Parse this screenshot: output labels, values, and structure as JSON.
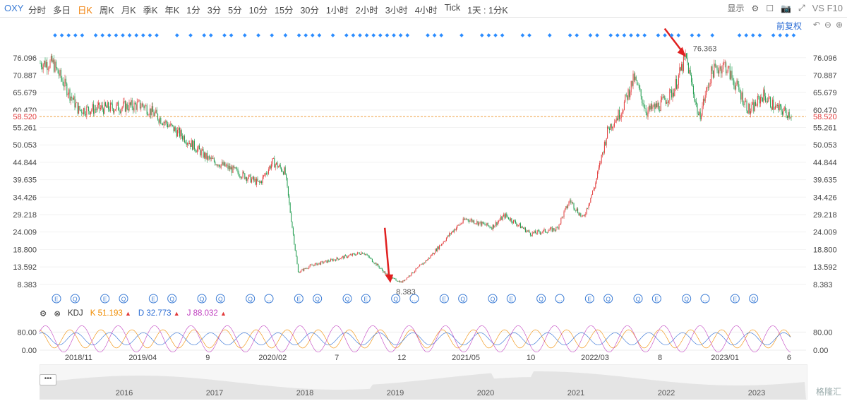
{
  "toolbar": {
    "symbol": "OXY",
    "periods": [
      "分时",
      "多日",
      "日K",
      "周K",
      "月K",
      "季K",
      "年K",
      "1分",
      "3分",
      "5分",
      "10分",
      "15分",
      "30分",
      "1小时",
      "2小时",
      "3小时",
      "4小时",
      "Tick",
      "1天 : 1分K"
    ],
    "active_period": "日K",
    "display_label": "显示",
    "vs_label": "VS F10",
    "adjust_label": "前复权"
  },
  "colors": {
    "up": "#e23a3a",
    "down": "#1a9a4a",
    "event_marker": "#2b8cff",
    "last_price_line": "#f0a040",
    "k_line": "#f08c00",
    "d_line": "#2b6cd4",
    "j_line": "#c040c0"
  },
  "chart_data": [
    {
      "type": "candlestick",
      "title": "",
      "ylim": [
        5.8,
        79.0
      ],
      "y_ticks": [
        "76.096",
        "70.887",
        "65.679",
        "60.470",
        "55.261",
        "50.053",
        "44.844",
        "39.635",
        "34.426",
        "29.218",
        "24.009",
        "18.800",
        "13.592",
        "8.383"
      ],
      "last_price": "58.520",
      "x_labels": [
        "2018/11",
        "2019/04",
        "9",
        "2020/02",
        "7",
        "12",
        "2021/05",
        "10",
        "2022/03",
        "8",
        "2023/01",
        "6"
      ],
      "x": [
        "2018-09",
        "2018-11",
        "2019-01",
        "2019-04",
        "2019-07",
        "2019-09",
        "2019-11",
        "2020-01",
        "2020-02",
        "2020-03",
        "2020-04",
        "2020-05",
        "2020-07",
        "2020-09",
        "2020-10",
        "2020-11",
        "2020-12",
        "2021-02",
        "2021-04",
        "2021-05",
        "2021-07",
        "2021-08",
        "2021-10",
        "2021-12",
        "2022-01",
        "2022-02",
        "2022-03",
        "2022-04",
        "2022-05",
        "2022-06",
        "2022-07",
        "2022-08",
        "2022-09",
        "2022-10",
        "2022-11",
        "2022-12",
        "2023-01",
        "2023-03",
        "2023-04",
        "2023-05",
        "2023-06",
        "2023-07"
      ],
      "close": [
        74.5,
        60.5,
        61.0,
        62.0,
        53.0,
        46.0,
        42.5,
        38.5,
        45.0,
        42.0,
        12.0,
        14.0,
        16.0,
        18.0,
        14.5,
        10.5,
        9.0,
        16.0,
        24.5,
        28.0,
        25.5,
        29.0,
        23.5,
        25.0,
        33.5,
        28.0,
        38.0,
        55.0,
        60.0,
        70.0,
        60.0,
        62.0,
        66.0,
        76.4,
        58.0,
        72.0,
        74.0,
        60.0,
        65.0,
        61.0,
        59.5,
        58.5
      ],
      "high_label": "76.363",
      "low_label": "8.383",
      "annotations": [
        {
          "label": "76.363",
          "x": "2022-10"
        },
        {
          "label": "8.383",
          "x": "2020-11"
        }
      ],
      "event_marker_labels": [
        "E",
        "Q",
        "E",
        "Q",
        "E",
        "Q",
        "Q",
        "Q",
        "Q",
        "...",
        "E",
        "Q",
        "Q",
        "E",
        "Q",
        "...",
        "E",
        "Q",
        "Q",
        "E",
        "Q",
        "...",
        "E",
        "Q",
        "Q",
        "E",
        "Q",
        "...",
        "E",
        "Q"
      ]
    },
    {
      "type": "line",
      "title": "KDJ",
      "series": [
        {
          "name": "K",
          "last_value": "51.193"
        },
        {
          "name": "D",
          "last_value": "32.773"
        },
        {
          "name": "J",
          "last_value": "88.032"
        }
      ],
      "y_ticks": [
        "80.00",
        "0.00"
      ]
    },
    {
      "type": "area",
      "title": "",
      "x_labels": [
        "2016",
        "2017",
        "2018",
        "2019",
        "2020",
        "2021",
        "2022",
        "2023"
      ]
    }
  ],
  "watermark": "格隆汇"
}
